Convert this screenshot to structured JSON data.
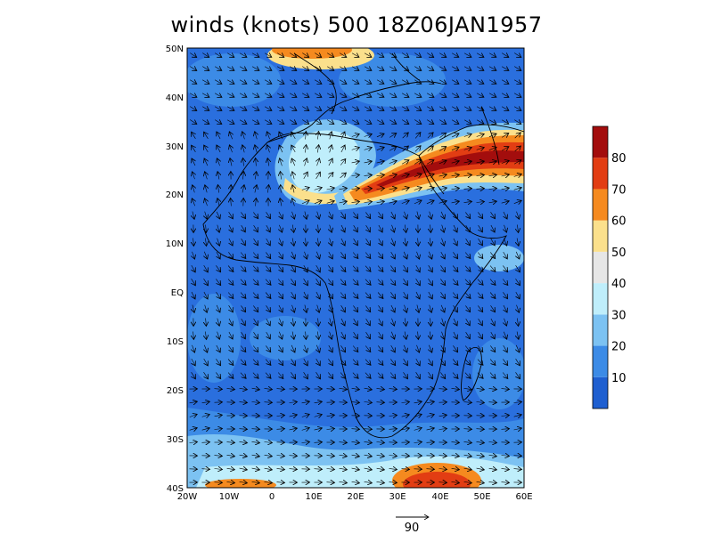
{
  "title": "winds (knots) 500 18Z06JAN1957",
  "map": {
    "lat_labels": [
      "50N",
      "40N",
      "30N",
      "20N",
      "10N",
      "EQ",
      "10S",
      "20S",
      "30S",
      "40S"
    ],
    "lon_labels": [
      "20W",
      "10W",
      "0",
      "10E",
      "20E",
      "30E",
      "40E",
      "50E",
      "60E"
    ],
    "lon_range": [
      -20,
      60
    ],
    "lat_range": [
      -40,
      50
    ],
    "features": [
      {
        "name": "subtropical-jet",
        "lon": [
          22,
          60
        ],
        "lat": [
          17,
          33
        ],
        "max_speed": 80
      },
      {
        "name": "trough-wrap",
        "lon": [
          2,
          22
        ],
        "lat": [
          18,
          33
        ],
        "max_speed": 50
      },
      {
        "name": "southern-jet",
        "lon": [
          30,
          50
        ],
        "lat": [
          -40,
          -35
        ],
        "max_speed": 60
      },
      {
        "name": "northern-jet",
        "lon": [
          0,
          18
        ],
        "lat": [
          46,
          50
        ],
        "max_speed": 60
      }
    ]
  },
  "colorbar": {
    "levels": [
      10,
      20,
      30,
      40,
      50,
      60,
      70,
      80
    ],
    "colors": [
      "#1f5fd0",
      "#3c8be6",
      "#7cc2f2",
      "#bfeefb",
      "#e6e6e6",
      "#fbe08c",
      "#f58a1f",
      "#e23d13",
      "#a30d0d"
    ]
  },
  "vector_key": {
    "label": "90"
  },
  "colors": {
    "background": "#ffffff",
    "frame": "#000000",
    "arrow": "#000000"
  }
}
